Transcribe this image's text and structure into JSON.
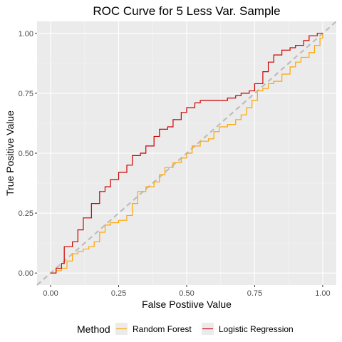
{
  "chart_data": {
    "type": "line",
    "title": "ROC Curve for 5 Less Var. Sample",
    "xlabel": "False Postiive Value",
    "ylabel": "True Positive Value",
    "xlim": [
      -0.05,
      1.05
    ],
    "ylim": [
      -0.05,
      1.05
    ],
    "xticks": [
      "0.00",
      "0.25",
      "0.50",
      "0.75",
      "1.00"
    ],
    "yticks": [
      "0.00",
      "0.25",
      "0.50",
      "0.75",
      "1.00"
    ],
    "grid": true,
    "legend": {
      "title": "Method",
      "position": "bottom"
    },
    "reference_line": {
      "x": [
        0,
        1
      ],
      "y": [
        0,
        1
      ],
      "color": "#bdbdbd",
      "style": "dashed"
    },
    "series": [
      {
        "name": "Random Forest",
        "color": "#FFA500",
        "x": [
          0,
          0.02,
          0.04,
          0.06,
          0.08,
          0.1,
          0.12,
          0.14,
          0.16,
          0.18,
          0.2,
          0.22,
          0.25,
          0.28,
          0.3,
          0.32,
          0.35,
          0.38,
          0.4,
          0.42,
          0.45,
          0.48,
          0.5,
          0.52,
          0.55,
          0.58,
          0.6,
          0.62,
          0.65,
          0.68,
          0.7,
          0.72,
          0.74,
          0.76,
          0.78,
          0.8,
          0.82,
          0.85,
          0.88,
          0.9,
          0.92,
          0.95,
          0.97,
          0.99,
          1.0
        ],
        "y": [
          0,
          0.01,
          0.02,
          0.05,
          0.08,
          0.09,
          0.1,
          0.11,
          0.13,
          0.17,
          0.2,
          0.21,
          0.22,
          0.24,
          0.29,
          0.34,
          0.36,
          0.38,
          0.41,
          0.44,
          0.46,
          0.48,
          0.5,
          0.53,
          0.55,
          0.56,
          0.59,
          0.61,
          0.62,
          0.64,
          0.66,
          0.69,
          0.72,
          0.76,
          0.77,
          0.79,
          0.8,
          0.83,
          0.86,
          0.88,
          0.9,
          0.92,
          0.95,
          0.98,
          1.0
        ]
      },
      {
        "name": "Logistic Regression",
        "color": "#CC0000",
        "x": [
          0,
          0.02,
          0.04,
          0.05,
          0.08,
          0.1,
          0.12,
          0.15,
          0.18,
          0.2,
          0.22,
          0.25,
          0.28,
          0.3,
          0.33,
          0.35,
          0.38,
          0.4,
          0.43,
          0.45,
          0.48,
          0.5,
          0.53,
          0.55,
          0.58,
          0.6,
          0.63,
          0.65,
          0.68,
          0.7,
          0.73,
          0.75,
          0.78,
          0.8,
          0.82,
          0.85,
          0.88,
          0.9,
          0.93,
          0.95,
          0.98,
          1.0
        ],
        "y": [
          0,
          0.02,
          0.04,
          0.11,
          0.13,
          0.18,
          0.23,
          0.29,
          0.34,
          0.36,
          0.39,
          0.42,
          0.45,
          0.49,
          0.5,
          0.53,
          0.57,
          0.6,
          0.61,
          0.64,
          0.67,
          0.69,
          0.71,
          0.72,
          0.72,
          0.72,
          0.72,
          0.73,
          0.74,
          0.75,
          0.76,
          0.79,
          0.84,
          0.88,
          0.91,
          0.93,
          0.94,
          0.95,
          0.97,
          0.99,
          1.0,
          1.0
        ]
      }
    ]
  }
}
